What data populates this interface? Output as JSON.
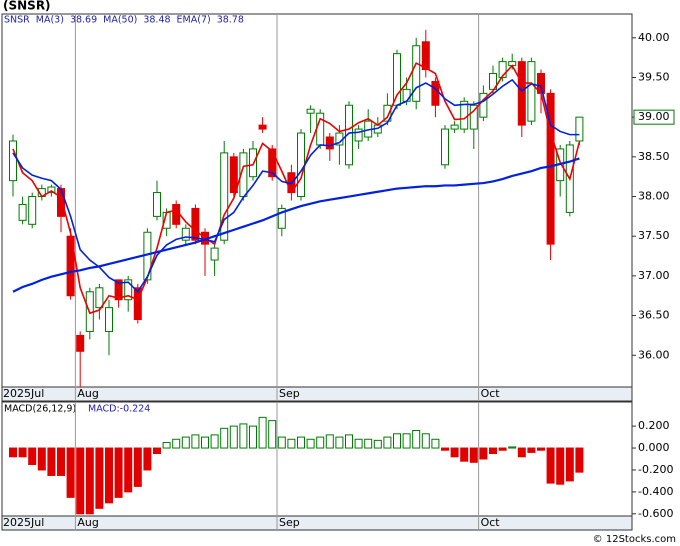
{
  "chart_data": [
    {
      "type": "candlestick",
      "title": "(SNSR)",
      "symbol": "SNSR",
      "categories": [
        "2025Jul",
        null,
        null,
        null,
        null,
        null,
        null,
        "Aug",
        null,
        null,
        null,
        null,
        null,
        null,
        null,
        null,
        null,
        null,
        null,
        null,
        null,
        null,
        null,
        null,
        null,
        null,
        null,
        null,
        "Sep",
        null,
        null,
        null,
        null,
        null,
        null,
        null,
        null,
        null,
        null,
        null,
        null,
        null,
        null,
        null,
        null,
        null,
        null,
        null,
        null,
        "Oct",
        null,
        null,
        null,
        null,
        null,
        null,
        null,
        null,
        null,
        null
      ],
      "open": [
        38.2,
        37.7,
        37.65,
        38.0,
        38.05,
        38.1,
        37.5,
        36.25,
        36.3,
        36.6,
        36.3,
        36.95,
        36.7,
        36.85,
        36.95,
        37.75,
        37.6,
        37.9,
        37.45,
        37.85,
        37.55,
        37.2,
        37.45,
        38.5,
        38.0,
        38.25,
        38.9,
        38.6,
        37.6,
        38.3,
        38.0,
        39.05,
        38.65,
        38.75,
        38.65,
        38.4,
        38.7,
        38.75,
        38.8,
        38.95,
        39.15,
        39.2,
        39.2,
        39.95,
        39.45,
        38.4,
        38.85,
        38.85,
        38.85,
        39.0,
        39.35,
        39.5,
        39.65,
        39.7,
        38.95,
        39.55,
        39.3,
        38.2,
        37.8,
        38.7
      ],
      "high": [
        38.78,
        38.0,
        38.05,
        38.15,
        38.15,
        38.15,
        37.6,
        36.3,
        36.85,
        36.9,
        36.7,
        36.95,
        37.0,
        36.9,
        37.6,
        38.2,
        37.85,
        37.95,
        37.65,
        37.9,
        37.6,
        37.4,
        38.7,
        38.55,
        38.6,
        38.7,
        39.0,
        38.65,
        37.9,
        38.4,
        38.85,
        39.15,
        39.1,
        38.8,
        38.9,
        39.2,
        38.9,
        39.1,
        39.0,
        39.3,
        39.85,
        39.5,
        40.0,
        40.1,
        39.5,
        38.9,
        38.95,
        39.25,
        39.2,
        39.4,
        39.65,
        39.75,
        39.8,
        39.75,
        39.75,
        39.6,
        39.35,
        38.65,
        38.7,
        39.0
      ],
      "low": [
        38.0,
        37.65,
        37.6,
        37.95,
        38.0,
        37.55,
        36.7,
        35.6,
        36.2,
        36.45,
        36.0,
        36.6,
        36.55,
        36.4,
        36.9,
        37.7,
        37.5,
        37.6,
        37.4,
        37.4,
        37.0,
        37.0,
        37.4,
        38.0,
        37.95,
        38.2,
        38.8,
        38.2,
        37.5,
        37.95,
        37.95,
        38.8,
        38.6,
        38.45,
        38.4,
        38.35,
        38.6,
        38.7,
        38.75,
        38.9,
        39.1,
        39.15,
        39.1,
        39.5,
        39.0,
        38.35,
        38.8,
        38.8,
        38.6,
        38.95,
        39.3,
        39.45,
        39.6,
        38.75,
        38.9,
        39.05,
        37.2,
        38.0,
        37.75,
        38.65
      ],
      "close": [
        38.7,
        37.9,
        38.0,
        38.1,
        38.12,
        37.75,
        36.75,
        36.05,
        36.8,
        36.85,
        36.6,
        36.7,
        36.95,
        36.45,
        37.55,
        38.05,
        37.8,
        37.65,
        37.6,
        37.45,
        37.4,
        37.35,
        38.55,
        38.05,
        38.55,
        38.6,
        38.85,
        38.25,
        37.85,
        38.05,
        38.8,
        39.1,
        39.05,
        38.6,
        38.8,
        39.15,
        38.85,
        38.95,
        38.9,
        39.15,
        39.8,
        39.35,
        39.9,
        39.6,
        39.15,
        38.85,
        38.9,
        39.2,
        39.15,
        39.3,
        39.55,
        39.7,
        39.7,
        38.9,
        39.7,
        39.3,
        37.4,
        38.6,
        38.65,
        39.0
      ],
      "up_color": "#007a00",
      "down_color": "#e00000",
      "series": [
        {
          "name": "MA(3)",
          "legend_value": "38.69",
          "color": "#ee0000",
          "values": [
            38.6,
            38.3,
            38.2,
            38.0,
            38.07,
            37.99,
            37.54,
            36.85,
            36.53,
            36.57,
            36.75,
            36.72,
            36.75,
            36.7,
            36.98,
            37.35,
            37.8,
            37.83,
            37.68,
            37.57,
            37.48,
            37.4,
            37.77,
            37.98,
            38.38,
            38.4,
            38.67,
            38.57,
            38.32,
            38.05,
            38.23,
            38.65,
            38.98,
            38.92,
            38.82,
            38.85,
            38.93,
            38.98,
            38.9,
            39.0,
            39.28,
            39.43,
            39.68,
            39.62,
            39.55,
            39.2,
            38.97,
            38.98,
            39.08,
            39.22,
            39.33,
            39.52,
            39.65,
            39.43,
            39.43,
            39.3,
            38.8,
            38.43,
            38.22,
            38.69
          ]
        },
        {
          "name": "MA(50)",
          "legend_value": "38.48",
          "color": "#0022dd",
          "width": 2.2,
          "values": [
            36.8,
            36.86,
            36.9,
            36.95,
            36.99,
            37.02,
            37.05,
            37.07,
            37.1,
            37.12,
            37.15,
            37.18,
            37.21,
            37.24,
            37.27,
            37.3,
            37.33,
            37.36,
            37.39,
            37.42,
            37.46,
            37.5,
            37.54,
            37.58,
            37.62,
            37.66,
            37.7,
            37.75,
            37.8,
            37.84,
            37.88,
            37.91,
            37.94,
            37.96,
            37.98,
            38.0,
            38.02,
            38.04,
            38.06,
            38.08,
            38.1,
            38.11,
            38.12,
            38.13,
            38.13,
            38.14,
            38.14,
            38.15,
            38.16,
            38.17,
            38.19,
            38.22,
            38.26,
            38.29,
            38.32,
            38.36,
            38.38,
            38.41,
            38.44,
            38.48
          ]
        },
        {
          "name": "EMA(7)",
          "legend_value": "38.78",
          "color": "#0022dd",
          "width": 1.6,
          "values": [
            38.55,
            38.36,
            38.27,
            38.23,
            38.2,
            38.09,
            37.75,
            37.33,
            37.2,
            37.11,
            36.98,
            36.91,
            36.92,
            36.8,
            36.99,
            37.26,
            37.39,
            37.46,
            37.49,
            37.48,
            37.46,
            37.43,
            37.71,
            37.8,
            37.99,
            38.14,
            38.32,
            38.3,
            38.19,
            38.16,
            38.32,
            38.52,
            38.65,
            38.64,
            38.68,
            38.8,
            38.81,
            38.84,
            38.86,
            38.93,
            39.15,
            39.2,
            39.37,
            39.43,
            39.36,
            39.23,
            39.15,
            39.16,
            39.16,
            39.2,
            39.29,
            39.39,
            39.47,
            39.33,
            39.42,
            39.39,
            38.9,
            38.82,
            38.78,
            38.78
          ]
        }
      ],
      "last_price": 39.0,
      "last_price_label": "39.00",
      "ylim": [
        35.6,
        40.3
      ],
      "yticks": [
        {
          "value": 36,
          "label": "36.00"
        },
        {
          "value": 36.5,
          "label": "36.50"
        },
        {
          "value": 37,
          "label": "37.00"
        },
        {
          "value": 37.5,
          "label": "37.50"
        },
        {
          "value": 38,
          "label": "38.00"
        },
        {
          "value": 38.5,
          "label": "38.50"
        },
        {
          "value": 39,
          "label": "39.00"
        },
        {
          "value": 39.5,
          "label": "39.50"
        },
        {
          "value": 40,
          "label": "40.00"
        }
      ]
    },
    {
      "type": "bar",
      "title": "MACD(26,12,9)",
      "subtitle": "MACD:-0.224",
      "up_color": "#007a00",
      "down_color": "#e00000",
      "values": [
        -0.08,
        -0.08,
        -0.15,
        -0.2,
        -0.25,
        -0.25,
        -0.45,
        -0.6,
        -0.6,
        -0.55,
        -0.5,
        -0.45,
        -0.4,
        -0.35,
        -0.2,
        -0.05,
        0.05,
        0.08,
        0.1,
        0.12,
        0.1,
        0.12,
        0.18,
        0.2,
        0.22,
        0.2,
        0.28,
        0.25,
        0.1,
        0.08,
        0.1,
        0.08,
        0.1,
        0.12,
        0.1,
        0.12,
        0.08,
        0.08,
        0.07,
        0.1,
        0.13,
        0.13,
        0.16,
        0.13,
        0.08,
        -0.02,
        -0.08,
        -0.12,
        -0.13,
        -0.1,
        -0.05,
        -0.02,
        0.01,
        -0.08,
        -0.04,
        -0.02,
        -0.32,
        -0.33,
        -0.3,
        -0.22
      ],
      "ylim": [
        -0.62,
        0.42
      ],
      "yticks": [
        {
          "value": 0.2,
          "label": "0.200"
        },
        {
          "value": 0,
          "label": "0.000"
        },
        {
          "value": -0.2,
          "label": "-0.200"
        },
        {
          "value": -0.4,
          "label": "-0.400"
        },
        {
          "value": -0.6,
          "label": "-0.600"
        }
      ]
    }
  ],
  "footer": "© 12Stocks.com"
}
